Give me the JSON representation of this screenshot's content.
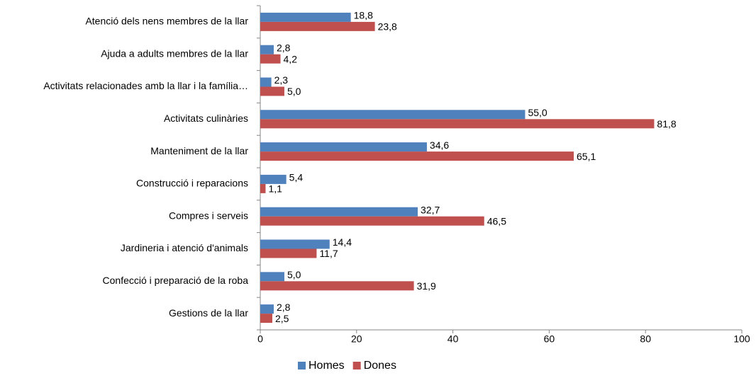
{
  "chart_data": {
    "type": "barh",
    "categories": [
      "Atenció dels nens membres de la llar",
      "Ajuda a adults membres de la llar",
      "Activitats relacionades amb la llar i la família…",
      "Activitats culinàries",
      "Manteniment de la llar",
      "Construcció i reparacions",
      "Compres i serveis",
      "Jardineria i atenció d'animals",
      "Confecció i preparació de la roba",
      "Gestions de la llar"
    ],
    "series": [
      {
        "name": "Homes",
        "color": "#4f81bd",
        "values": [
          18.8,
          2.8,
          2.3,
          55.0,
          34.6,
          5.4,
          32.7,
          14.4,
          5.0,
          2.8
        ],
        "value_labels": [
          "18,8",
          "2,8",
          "2,3",
          "55,0",
          "34,6",
          "5,4",
          "32,7",
          "14,4",
          "5,0",
          "2,8"
        ]
      },
      {
        "name": "Dones",
        "color": "#c0504d",
        "values": [
          23.8,
          4.2,
          5.0,
          81.8,
          65.1,
          1.1,
          46.5,
          11.7,
          31.9,
          2.5
        ],
        "value_labels": [
          "23,8",
          "4,2",
          "5,0",
          "81,8",
          "65,1",
          "1,1",
          "46,5",
          "11,7",
          "31,9",
          "2,5"
        ]
      }
    ],
    "xlim": [
      0,
      100
    ],
    "xticks": [
      0,
      20,
      40,
      60,
      80,
      100
    ],
    "legend": "bottom"
  }
}
